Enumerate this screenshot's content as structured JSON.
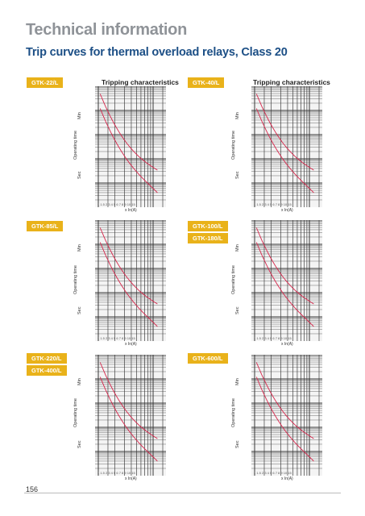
{
  "header": {
    "title": "Technical information",
    "subtitle": "Trip curves for thermal overload relays, Class 20"
  },
  "panels": [
    {
      "badges": [
        "GTK-22/L"
      ],
      "title": "Tripping characteristics",
      "ylabel_main": "Operating time",
      "ylabel_min": "Min",
      "ylabel_sec": "Sec",
      "x_ticks": "1    1.5    2       3    4   5   6  7  8 9 10     15",
      "xlabel": "x In(A)"
    },
    {
      "badges": [
        "GTK-40/L"
      ],
      "title": "Tripping characteristics",
      "ylabel_main": "Operating time",
      "ylabel_min": "Min",
      "ylabel_sec": "Sec",
      "x_ticks": "1    1.5    2       3    4   5   6  7  8 9 10     15",
      "xlabel": "x In(A)"
    },
    {
      "badges": [
        "GTK-85/L"
      ],
      "title": "",
      "ylabel_main": "Operating time",
      "ylabel_min": "Min",
      "ylabel_sec": "Sec",
      "x_ticks": "1    1.5    2       3    4   5   6  7  8 9 10     15",
      "xlabel": "x In(A)"
    },
    {
      "badges": [
        "GTK-100/L",
        "GTK-180/L"
      ],
      "title": "",
      "ylabel_main": "Operating time",
      "ylabel_min": "Min",
      "ylabel_sec": "Sec",
      "x_ticks": "1    1.5    2       3    4   5   6  7  8 9 10     15",
      "xlabel": "x In(A)"
    },
    {
      "badges": [
        "GTK-220/L",
        "GTK-400/L"
      ],
      "title": "",
      "ylabel_main": "Operating time",
      "ylabel_min": "Min",
      "ylabel_sec": "Sec",
      "x_ticks": "1    1.5    2       3    4   5   6  7  8 9 10     15",
      "xlabel": "x In(A)"
    },
    {
      "badges": [
        "GTK-600/L"
      ],
      "title": "",
      "ylabel_main": "Operating time",
      "ylabel_min": "Min",
      "ylabel_sec": "Sec",
      "x_ticks": "1    1.5    2       3    4   5   6  7  8 9 10     15",
      "xlabel": "x In(A)"
    }
  ],
  "footer": {
    "page_number": "156"
  },
  "colors": {
    "accent": "#e9b21a",
    "curve": "#d6264b",
    "title_blue": "#1c4f86",
    "title_grey": "#8f9398"
  }
}
